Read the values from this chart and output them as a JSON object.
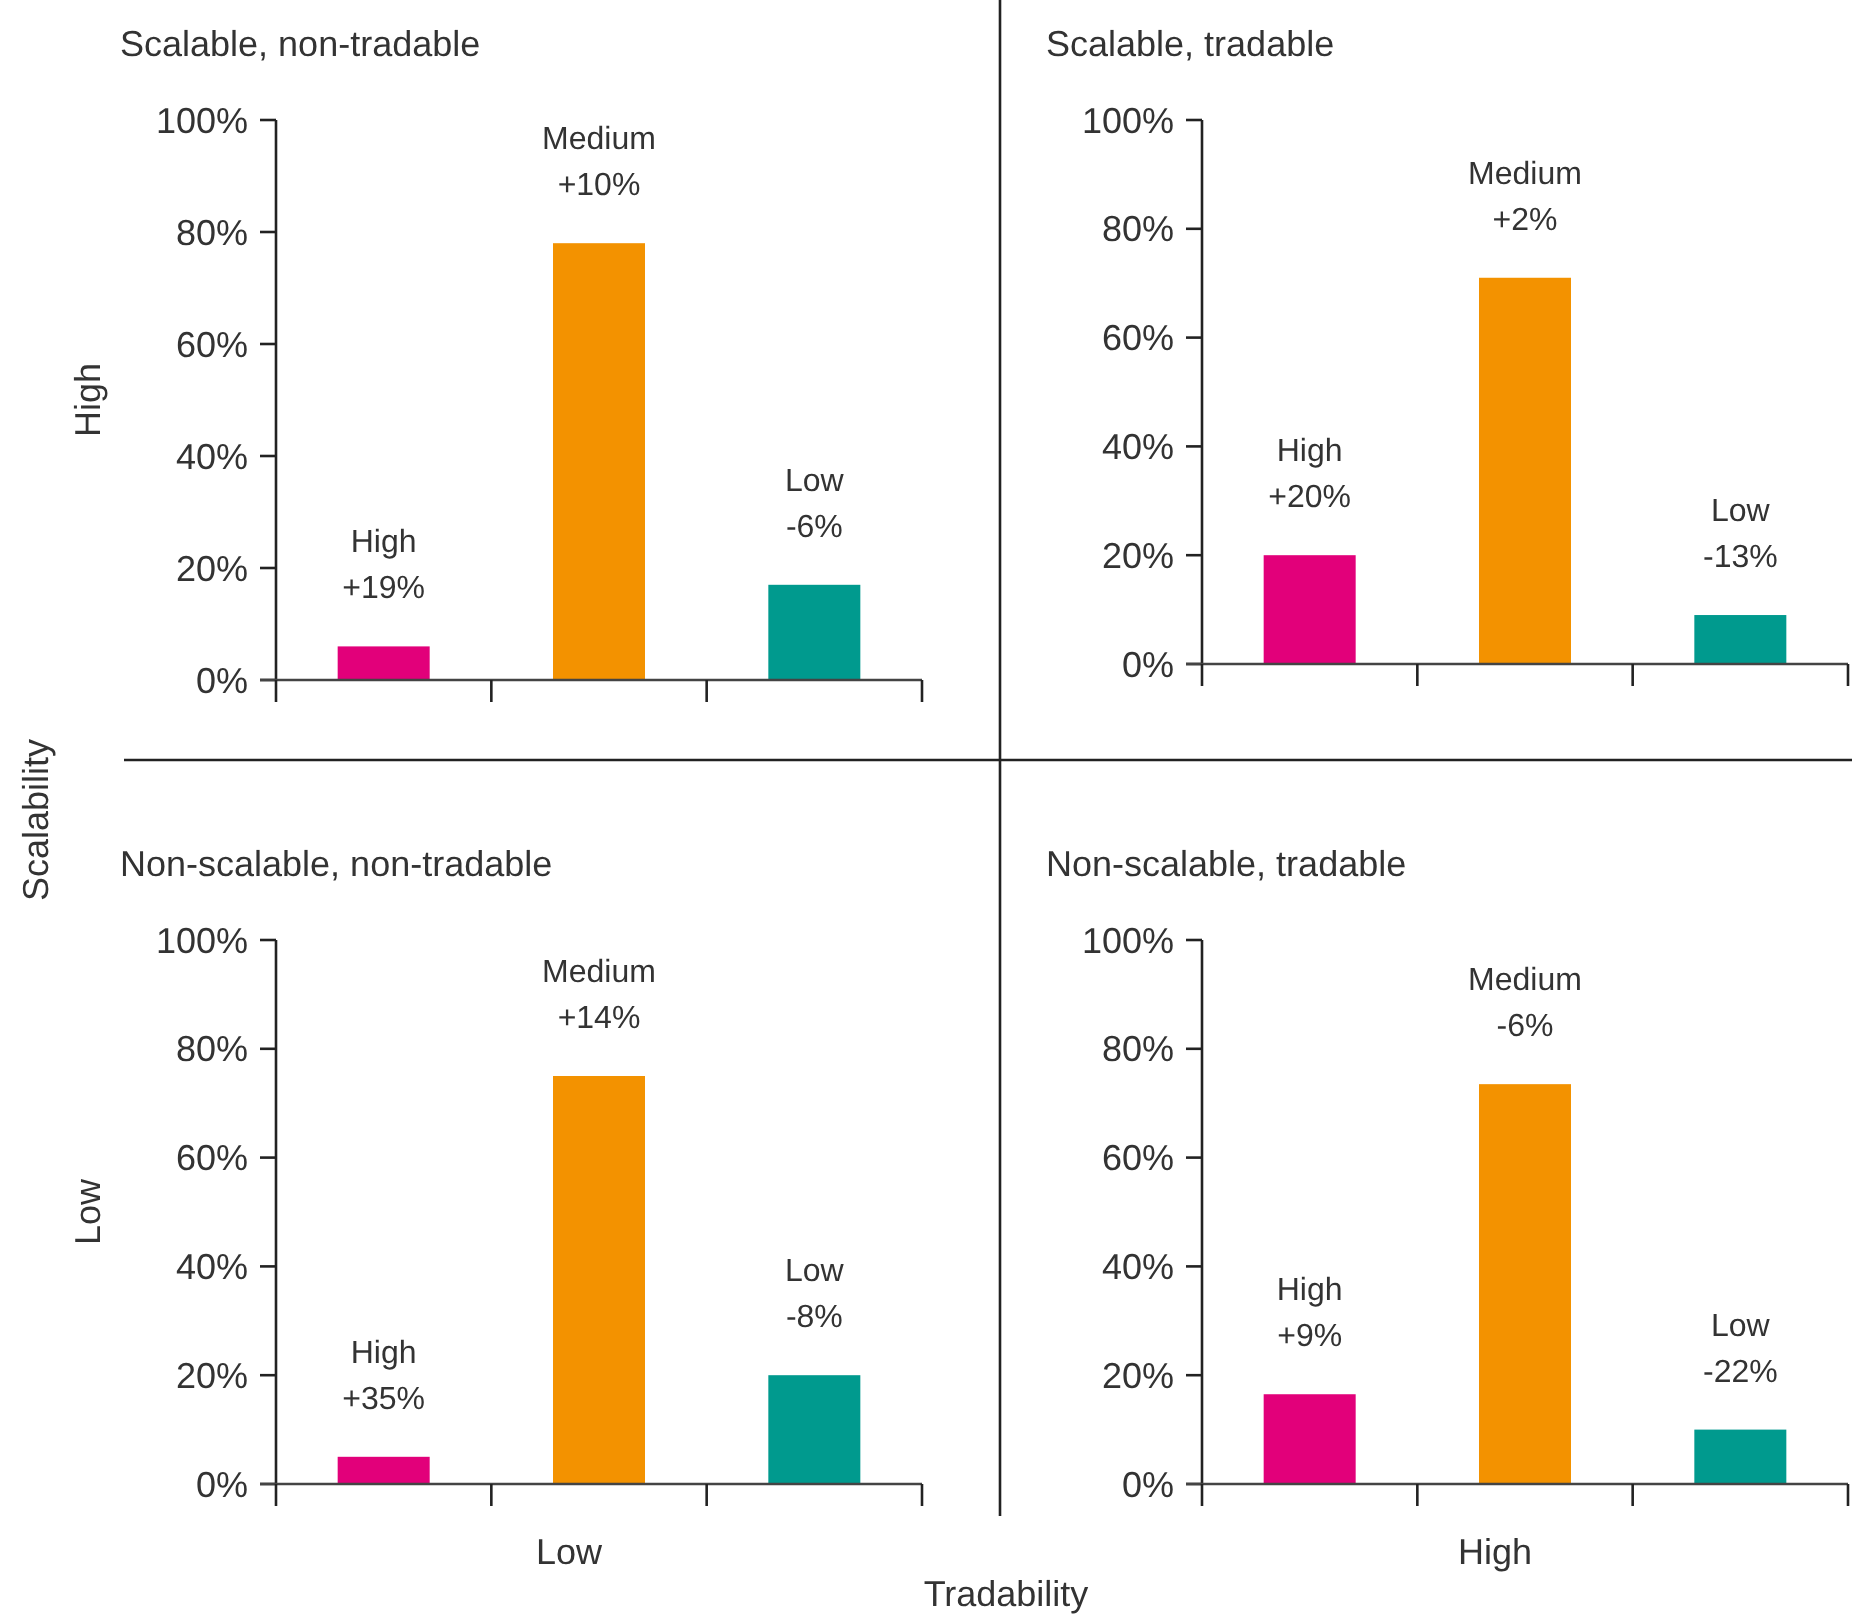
{
  "chart_data": [
    {
      "type": "bar",
      "title": "Scalable, non-tradable",
      "ylabel": "High",
      "categories": [
        "High",
        "Medium",
        "Low"
      ],
      "values": [
        6,
        78,
        17
      ],
      "colors": [
        "#e2007a",
        "#f39200",
        "#009a8e"
      ],
      "ylim": [
        0,
        100
      ],
      "yticks": [
        {
          "value": 0,
          "label": "0%"
        },
        {
          "value": 20,
          "label": "20%"
        },
        {
          "value": 40,
          "label": "40%"
        },
        {
          "value": 60,
          "label": "60%"
        },
        {
          "value": 80,
          "label": "80%"
        },
        {
          "value": 100,
          "label": "100%"
        }
      ],
      "tick_labels": "y",
      "annotations": [
        "Scalability",
        {
          "text": "+19%",
          "x": "High",
          "y": 6
        },
        {
          "text": "+10%",
          "x": "Medium",
          "y": 78
        },
        {
          "text": "-6%",
          "x": "Low",
          "y": 17
        }
      ]
    },
    {
      "type": "bar",
      "title": "Scalable, tradable",
      "categories": [
        "High",
        "Medium",
        "Low"
      ],
      "values": [
        20,
        71,
        9
      ],
      "colors": [
        "#e2007a",
        "#f39200",
        "#009a8e"
      ],
      "ylim": [
        0,
        100
      ],
      "yticks": [
        {
          "value": 0,
          "label": "0%"
        },
        {
          "value": 20,
          "label": "20%"
        },
        {
          "value": 40,
          "label": "40%"
        },
        {
          "value": 60,
          "label": "60%"
        },
        {
          "value": 80,
          "label": "80%"
        },
        {
          "value": 100,
          "label": "100%"
        }
      ],
      "tick_labels": "y",
      "annotations": [
        {
          "text": "+20%",
          "x": "High",
          "y": 20
        },
        {
          "text": "+2%",
          "x": "Medium",
          "y": 71
        },
        {
          "text": "-13%",
          "x": "Low",
          "y": 9
        }
      ]
    },
    {
      "type": "bar",
      "title": "Non-scalable, non-tradable",
      "ylabel": "Low",
      "xlabel": "Low",
      "categories": [
        "High",
        "Medium",
        "Low"
      ],
      "values": [
        5,
        75,
        20
      ],
      "colors": [
        "#e2007a",
        "#f39200",
        "#009a8e"
      ],
      "ylim": [
        0,
        100
      ],
      "yticks": [
        {
          "value": 0,
          "label": "0%"
        },
        {
          "value": 20,
          "label": "20%"
        },
        {
          "value": 40,
          "label": "40%"
        },
        {
          "value": 60,
          "label": "60%"
        },
        {
          "value": 80,
          "label": "80%"
        },
        {
          "value": 100,
          "label": "100%"
        }
      ],
      "tick_labels": "y",
      "annotations": [
        "Tradability",
        {
          "text": "+35%",
          "x": "High",
          "y": 5
        },
        {
          "text": "+14%",
          "x": "Medium",
          "y": 75
        },
        {
          "text": "-8%",
          "x": "Low",
          "y": 20
        }
      ]
    },
    {
      "type": "bar",
      "title": "Non-scalable, tradable",
      "xlabel": "High",
      "categories": [
        "High",
        "Medium",
        "Low"
      ],
      "values": [
        16.5,
        73.5,
        10
      ],
      "colors": [
        "#e2007a",
        "#f39200",
        "#009a8e"
      ],
      "ylim": [
        0,
        100
      ],
      "yticks": [
        {
          "value": 0,
          "label": "0%"
        },
        {
          "value": 20,
          "label": "20%"
        },
        {
          "value": 40,
          "label": "40%"
        },
        {
          "value": 60,
          "label": "60%"
        },
        {
          "value": 80,
          "label": "80%"
        },
        {
          "value": 100,
          "label": "100%"
        }
      ],
      "tick_labels": "y",
      "annotations": [
        {
          "text": "+9%",
          "x": "High",
          "y": 16.5
        },
        {
          "text": "-6%",
          "x": "Medium",
          "y": 73.5
        },
        {
          "text": "-22%",
          "x": "Low",
          "y": 10
        }
      ]
    }
  ]
}
